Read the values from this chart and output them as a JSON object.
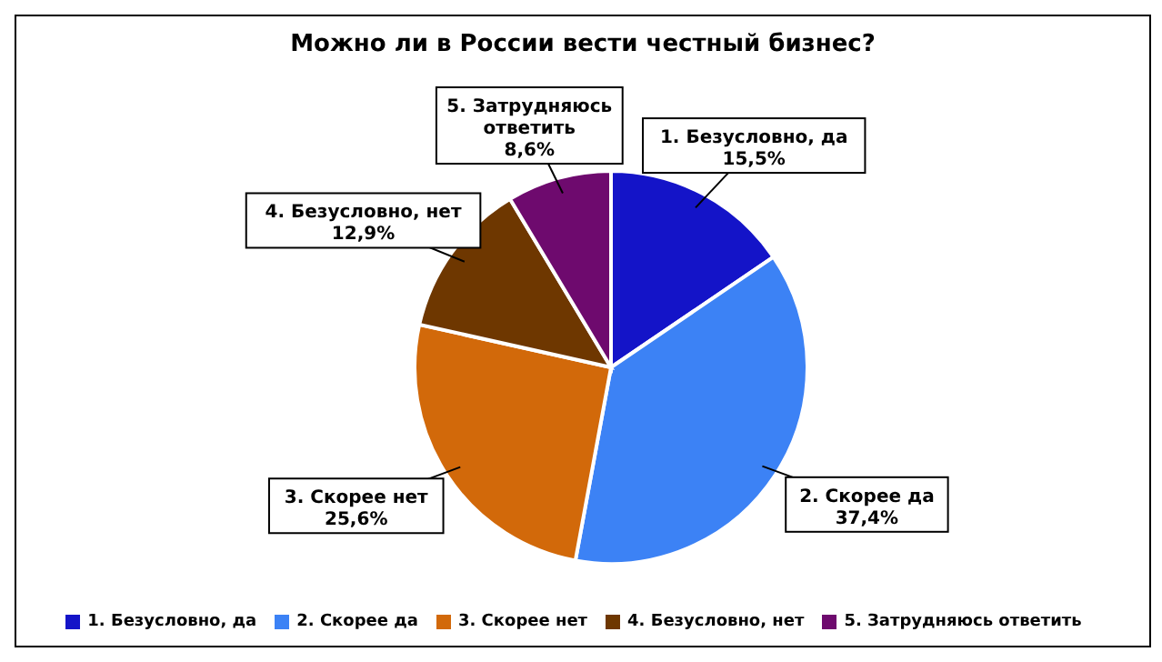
{
  "chart_data": {
    "type": "pie",
    "title": "Можно ли в России вести честный бизнес?",
    "categories": [
      "1. Безусловно, да",
      "2. Скорее да",
      "3. Скорее нет",
      "4. Безусловно, нет",
      "5. Затрудняюсь ответить"
    ],
    "values": [
      15.5,
      37.4,
      25.6,
      12.9,
      8.6
    ],
    "value_labels": [
      "15,5%",
      "37,4%",
      "25,6%",
      "12,9%",
      "8,6%"
    ],
    "colors": [
      "#1414c8",
      "#3c82f5",
      "#d2690a",
      "#6e3700",
      "#6e0a6e"
    ],
    "legend": "bottom"
  }
}
